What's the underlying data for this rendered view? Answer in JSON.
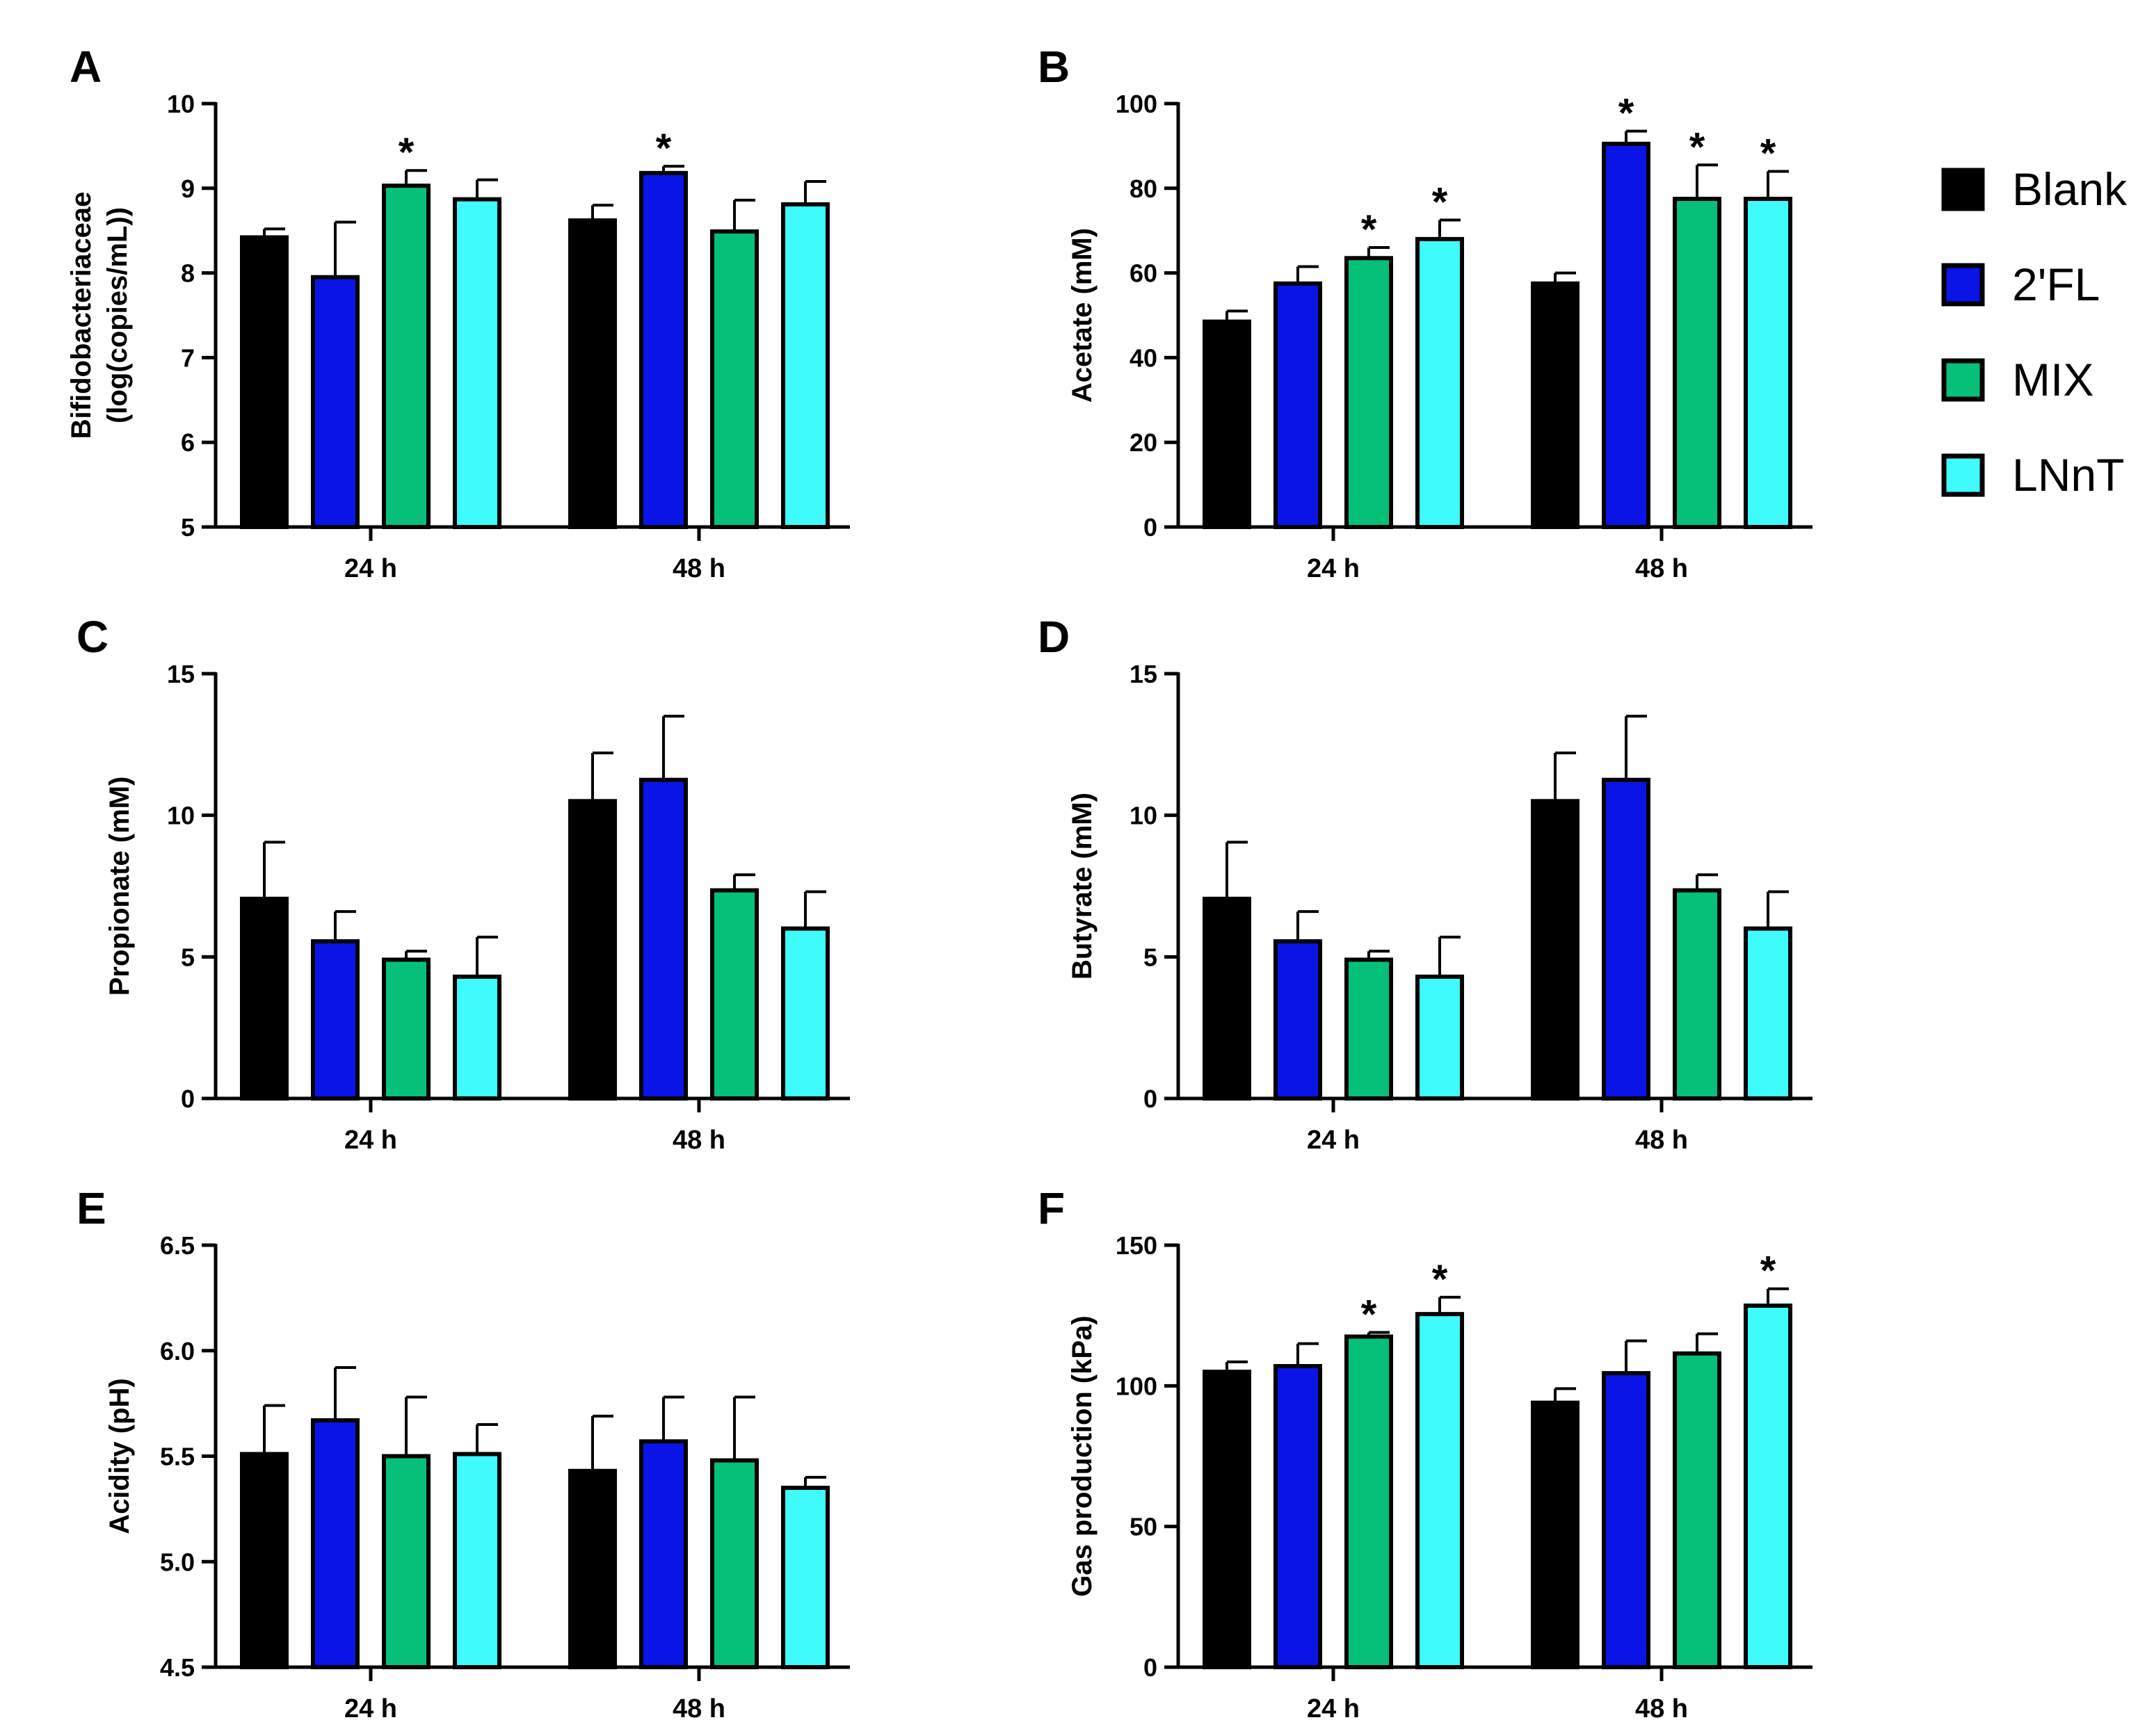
{
  "legend": [
    {
      "label": "Blank",
      "color": "#000000"
    },
    {
      "label": "2'FL",
      "color": "#0a14e6"
    },
    {
      "label": "MIX",
      "color": "#06c07a"
    },
    {
      "label": "LNnT",
      "color": "#3ffbfb"
    }
  ],
  "chart_data": [
    {
      "panel": "A",
      "type": "bar",
      "ylabel": "Bifidobacteriaceae",
      "ylabel2": "(log(copies/mL))",
      "categories": [
        "24 h",
        "48 h"
      ],
      "ylim": [
        5,
        10
      ],
      "yticks": [
        "5",
        "6",
        "7",
        "8",
        "9",
        "10"
      ],
      "series": [
        {
          "name": "Blank",
          "values": [
            8.42,
            8.62
          ],
          "errors": [
            0.1,
            0.18
          ],
          "sig": [
            false,
            false
          ]
        },
        {
          "name": "2'FL",
          "values": [
            7.95,
            9.18
          ],
          "errors": [
            0.65,
            0.08
          ],
          "sig": [
            false,
            true
          ]
        },
        {
          "name": "MIX",
          "values": [
            9.03,
            8.49
          ],
          "errors": [
            0.18,
            0.37
          ],
          "sig": [
            true,
            false
          ]
        },
        {
          "name": "LNnT",
          "values": [
            8.87,
            8.81
          ],
          "errors": [
            0.23,
            0.27
          ],
          "sig": [
            false,
            false
          ]
        }
      ]
    },
    {
      "panel": "B",
      "type": "bar",
      "ylabel": "Acetate (mM)",
      "categories": [
        "24 h",
        "48 h"
      ],
      "ylim": [
        0,
        100
      ],
      "yticks": [
        "0",
        "20",
        "40",
        "60",
        "80",
        "100"
      ],
      "series": [
        {
          "name": "Blank",
          "values": [
            48.5,
            57.5
          ],
          "errors": [
            2.5,
            2.5
          ],
          "sig": [
            false,
            false
          ]
        },
        {
          "name": "2'FL",
          "values": [
            57.5,
            90.5
          ],
          "errors": [
            4.0,
            3.0
          ],
          "sig": [
            false,
            true
          ]
        },
        {
          "name": "MIX",
          "values": [
            63.5,
            77.5
          ],
          "errors": [
            2.5,
            8.0
          ],
          "sig": [
            true,
            true
          ]
        },
        {
          "name": "LNnT",
          "values": [
            68.0,
            77.5
          ],
          "errors": [
            4.5,
            6.5
          ],
          "sig": [
            true,
            true
          ]
        }
      ]
    },
    {
      "panel": "C",
      "type": "bar",
      "ylabel": "Propionate (mM)",
      "categories": [
        "24 h",
        "48 h"
      ],
      "ylim": [
        0,
        15
      ],
      "yticks": [
        "0",
        "5",
        "10",
        "15"
      ],
      "series": [
        {
          "name": "Blank",
          "values": [
            7.05,
            10.5
          ],
          "errors": [
            2.0,
            1.7
          ],
          "sig": [
            false,
            false
          ]
        },
        {
          "name": "2'FL",
          "values": [
            5.55,
            11.25
          ],
          "errors": [
            1.05,
            2.25
          ],
          "sig": [
            false,
            false
          ]
        },
        {
          "name": "MIX",
          "values": [
            4.9,
            7.35
          ],
          "errors": [
            0.3,
            0.55
          ],
          "sig": [
            false,
            false
          ]
        },
        {
          "name": "LNnT",
          "values": [
            4.3,
            6.0
          ],
          "errors": [
            1.4,
            1.3
          ],
          "sig": [
            false,
            false
          ]
        }
      ]
    },
    {
      "panel": "D",
      "type": "bar",
      "ylabel": "Butyrate (mM)",
      "categories": [
        "24 h",
        "48 h"
      ],
      "ylim": [
        0,
        15
      ],
      "yticks": [
        "0",
        "5",
        "10",
        "15"
      ],
      "series": [
        {
          "name": "Blank",
          "values": [
            7.05,
            10.5
          ],
          "errors": [
            2.0,
            1.7
          ],
          "sig": [
            false,
            false
          ]
        },
        {
          "name": "2'FL",
          "values": [
            5.55,
            11.25
          ],
          "errors": [
            1.05,
            2.25
          ],
          "sig": [
            false,
            false
          ]
        },
        {
          "name": "MIX",
          "values": [
            4.9,
            7.35
          ],
          "errors": [
            0.3,
            0.55
          ],
          "sig": [
            false,
            false
          ]
        },
        {
          "name": "LNnT",
          "values": [
            4.3,
            6.0
          ],
          "errors": [
            1.4,
            1.3
          ],
          "sig": [
            false,
            false
          ]
        }
      ]
    },
    {
      "panel": "E",
      "type": "bar",
      "ylabel": "Acidity (pH)",
      "categories": [
        "24 h",
        "48 h"
      ],
      "ylim": [
        4.5,
        6.5
      ],
      "yticks": [
        "4.5",
        "5.0",
        "5.5",
        "6.0",
        "6.5"
      ],
      "series": [
        {
          "name": "Blank",
          "values": [
            5.51,
            5.43
          ],
          "errors": [
            0.23,
            0.26
          ],
          "sig": [
            false,
            false
          ]
        },
        {
          "name": "2'FL",
          "values": [
            5.67,
            5.57
          ],
          "errors": [
            0.25,
            0.21
          ],
          "sig": [
            false,
            false
          ]
        },
        {
          "name": "MIX",
          "values": [
            5.5,
            5.48
          ],
          "errors": [
            0.28,
            0.3
          ],
          "sig": [
            false,
            false
          ]
        },
        {
          "name": "LNnT",
          "values": [
            5.51,
            5.35
          ],
          "errors": [
            0.14,
            0.05
          ],
          "sig": [
            false,
            false
          ]
        }
      ]
    },
    {
      "panel": "F",
      "type": "bar",
      "ylabel": "Gas production (kPa)",
      "categories": [
        "24 h",
        "48 h"
      ],
      "ylim": [
        0,
        150
      ],
      "yticks": [
        "0",
        "50",
        "100",
        "150"
      ],
      "series": [
        {
          "name": "Blank",
          "values": [
            105,
            94
          ],
          "errors": [
            3.5,
            5.0
          ],
          "sig": [
            false,
            false
          ]
        },
        {
          "name": "2'FL",
          "values": [
            107,
            104.5
          ],
          "errors": [
            8.0,
            11.5
          ],
          "sig": [
            false,
            false
          ]
        },
        {
          "name": "MIX",
          "values": [
            117.5,
            111.5
          ],
          "errors": [
            1.5,
            7.0
          ],
          "sig": [
            true,
            false
          ]
        },
        {
          "name": "LNnT",
          "values": [
            125.5,
            128.5
          ],
          "errors": [
            6.0,
            6.0
          ],
          "sig": [
            true,
            true
          ]
        }
      ]
    }
  ]
}
